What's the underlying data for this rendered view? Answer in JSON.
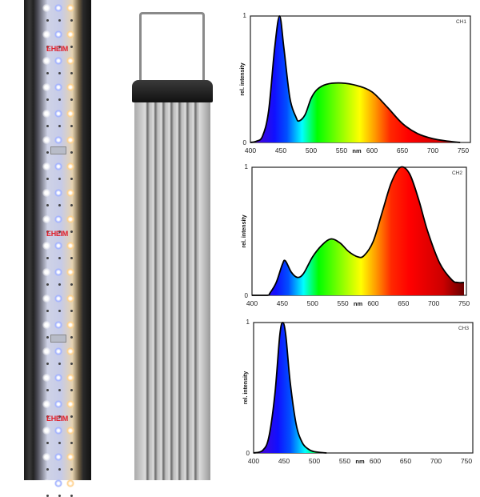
{
  "product": {
    "logo_text": "EHEIM"
  },
  "chart_data": [
    {
      "type": "area",
      "title": "CH1",
      "xlabel": "nm",
      "ylabel": "rel. intensity",
      "xlim": [
        400,
        750
      ],
      "ylim": [
        0,
        1
      ],
      "xticks": [
        400,
        450,
        500,
        550,
        600,
        650,
        700,
        750
      ],
      "yticks": [
        0,
        1
      ],
      "x": [
        400,
        410,
        420,
        430,
        440,
        448,
        455,
        465,
        475,
        480,
        490,
        500,
        510,
        525,
        550,
        575,
        600,
        625,
        650,
        675,
        700,
        725,
        745
      ],
      "y": [
        0,
        0.01,
        0.05,
        0.25,
        0.75,
        1.0,
        0.75,
        0.35,
        0.2,
        0.17,
        0.22,
        0.35,
        0.42,
        0.46,
        0.47,
        0.45,
        0.4,
        0.28,
        0.15,
        0.07,
        0.03,
        0.01,
        0
      ]
    },
    {
      "type": "area",
      "title": "CH2",
      "xlabel": "nm",
      "ylabel": "rel. intensity",
      "xlim": [
        400,
        750
      ],
      "ylim": [
        0,
        1
      ],
      "xticks": [
        400,
        450,
        500,
        550,
        600,
        650,
        700,
        750
      ],
      "yticks": [
        0,
        1
      ],
      "x": [
        400,
        425,
        430,
        440,
        450,
        455,
        465,
        475,
        485,
        500,
        515,
        530,
        545,
        560,
        575,
        585,
        600,
        615,
        630,
        645,
        660,
        675,
        690,
        710,
        730,
        740,
        750
      ],
      "y": [
        0,
        0,
        0.02,
        0.1,
        0.24,
        0.27,
        0.18,
        0.14,
        0.17,
        0.3,
        0.39,
        0.44,
        0.41,
        0.34,
        0.3,
        0.31,
        0.42,
        0.65,
        0.88,
        1.0,
        0.95,
        0.75,
        0.5,
        0.25,
        0.12,
        0.1,
        0.1
      ]
    },
    {
      "type": "area",
      "title": "CH3",
      "xlabel": "nm",
      "ylabel": "rel. intensity",
      "xlim": [
        400,
        750
      ],
      "ylim": [
        0,
        1
      ],
      "xticks": [
        400,
        450,
        500,
        550,
        600,
        650,
        700,
        750
      ],
      "yticks": [
        0,
        1
      ],
      "x": [
        400,
        415,
        425,
        435,
        443,
        448,
        453,
        460,
        470,
        480,
        490,
        500,
        520
      ],
      "y": [
        0,
        0.02,
        0.12,
        0.45,
        0.9,
        1.0,
        0.9,
        0.55,
        0.22,
        0.08,
        0.03,
        0.01,
        0
      ]
    }
  ]
}
